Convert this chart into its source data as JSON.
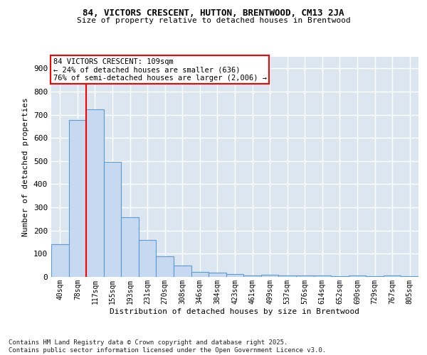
{
  "title1": "84, VICTORS CRESCENT, HUTTON, BRENTWOOD, CM13 2JA",
  "title2": "Size of property relative to detached houses in Brentwood",
  "xlabel": "Distribution of detached houses by size in Brentwood",
  "ylabel": "Number of detached properties",
  "bar_labels": [
    "40sqm",
    "78sqm",
    "117sqm",
    "155sqm",
    "193sqm",
    "231sqm",
    "270sqm",
    "308sqm",
    "346sqm",
    "384sqm",
    "423sqm",
    "461sqm",
    "499sqm",
    "537sqm",
    "576sqm",
    "614sqm",
    "652sqm",
    "690sqm",
    "729sqm",
    "767sqm",
    "805sqm"
  ],
  "bar_values": [
    140,
    678,
    722,
    497,
    258,
    158,
    88,
    50,
    21,
    18,
    11,
    7,
    10,
    7,
    7,
    5,
    3,
    5,
    2,
    5,
    3
  ],
  "bar_color": "#c6d9f0",
  "bar_edge_color": "#5b9bd5",
  "ylim": [
    0,
    950
  ],
  "yticks": [
    0,
    100,
    200,
    300,
    400,
    500,
    600,
    700,
    800,
    900
  ],
  "property_label": "84 VICTORS CRESCENT: 109sqm",
  "pct_smaller": "← 24% of detached houses are smaller (636)",
  "pct_larger": "76% of semi-detached houses are larger (2,006) →",
  "vline_x": 1.5,
  "footer": "Contains HM Land Registry data © Crown copyright and database right 2025.\nContains public sector information licensed under the Open Government Licence v3.0.",
  "bg_color": "#dce6f1",
  "grid_color": "#ffffff"
}
